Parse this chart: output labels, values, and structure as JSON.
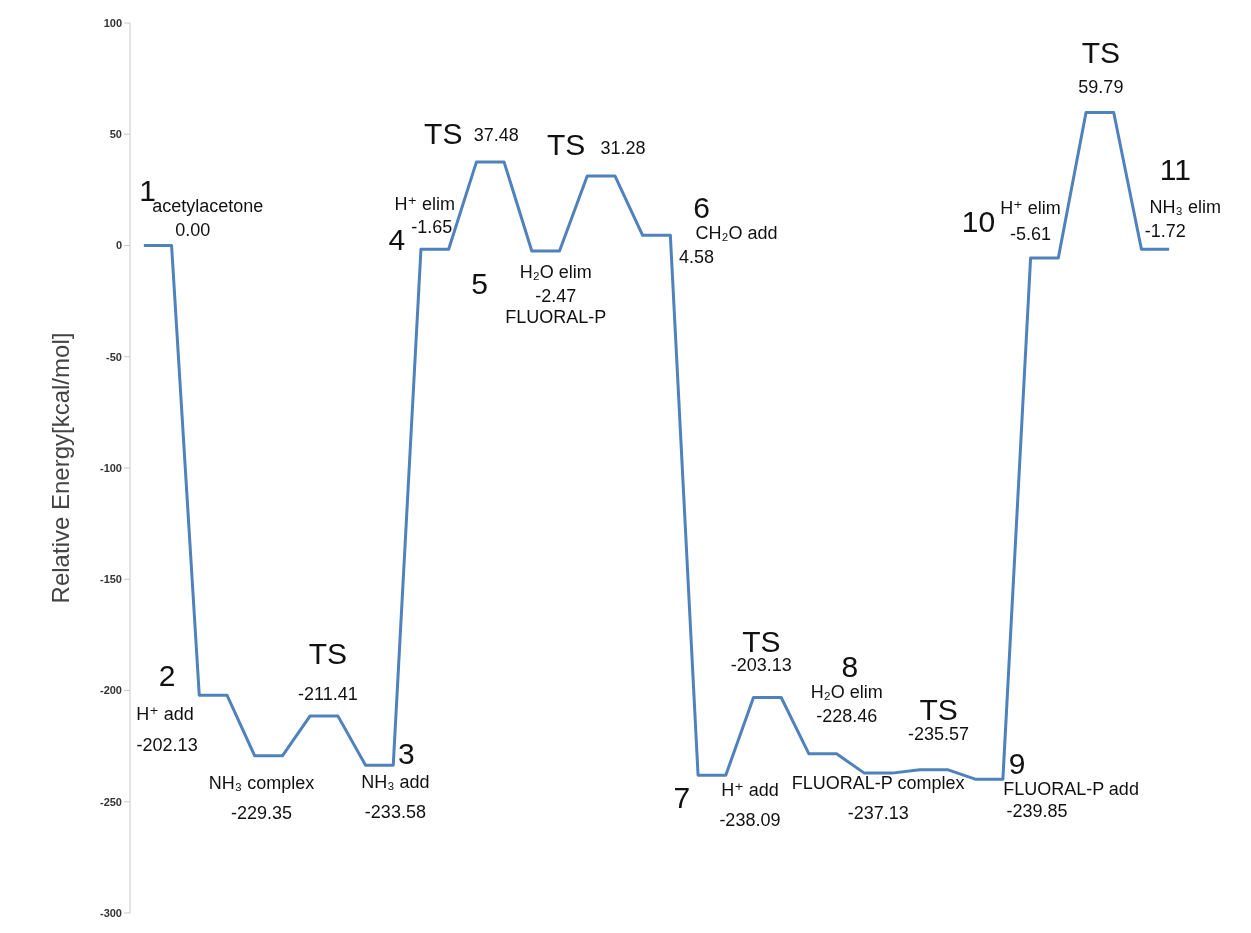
{
  "chart_data": {
    "type": "line",
    "ylabel": "Relative Energy[kcal/mol]",
    "ylim": [
      -300,
      100
    ],
    "yticks": [
      -300,
      -250,
      -200,
      -150,
      -100,
      -50,
      0,
      50,
      100
    ],
    "tick_labels": "y",
    "color": "#4f81bd",
    "categories": [
      null,
      null,
      null,
      null,
      null,
      null,
      null,
      null,
      null,
      null,
      null,
      null,
      null,
      null,
      null,
      null,
      null,
      null,
      null,
      null,
      null,
      null,
      null,
      null,
      null,
      null,
      null,
      null,
      null,
      null,
      null,
      null,
      null,
      null,
      null,
      null,
      null,
      null
    ],
    "values": [
      0,
      0,
      -202.13,
      -202.13,
      -229.35,
      -229.35,
      -211.41,
      -211.41,
      -233.58,
      -233.58,
      -1.65,
      -1.65,
      37.48,
      37.48,
      -2.47,
      -2.47,
      31.28,
      31.28,
      4.58,
      4.58,
      -238.09,
      -238.09,
      -203.13,
      -203.13,
      -228.46,
      -228.46,
      -237.13,
      -237.13,
      -235.57,
      -235.57,
      -239.85,
      -239.85,
      -5.61,
      -5.61,
      59.79,
      59.79,
      -1.72,
      -1.72
    ],
    "value_labels": [
      null,
      "0.00",
      "-202.13",
      null,
      "-229.35",
      null,
      "-211.41",
      null,
      "-233.58",
      null,
      "-1.65",
      null,
      "37.48",
      null,
      "-2.47",
      null,
      "31.28",
      null,
      null,
      "4.58",
      "-238.09",
      null,
      "-203.13",
      null,
      "-228.46",
      null,
      "-237.13",
      null,
      "-235.57",
      null,
      null,
      "-239.85",
      "-5.61",
      null,
      "59.79",
      null,
      "-1.72",
      null
    ],
    "annotations": [
      "1",
      "acetylacetone",
      "2",
      "H⁺ add",
      "NH₃ complex",
      "TS",
      "3",
      "NH₃ add",
      "4",
      "H⁺ elim",
      "TS",
      "TS",
      "5",
      "H₂O elim",
      "FLUORAL-P",
      "6",
      "CH₂O add",
      "TS",
      "8",
      "H₂O elim",
      "TS",
      "7",
      "H⁺ add",
      "FLUORAL-P complex",
      "9",
      "FLUORAL-P add",
      "10",
      "H⁺ elim",
      "TS",
      "11",
      "NH₃ elim"
    ]
  }
}
